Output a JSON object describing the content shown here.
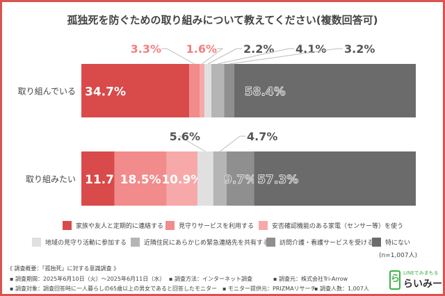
{
  "chart_data": {
    "type": "bar",
    "stacked": true,
    "orientation": "horizontal",
    "title": "孤独死を防ぐための取り組みについて教えてください(複数回答可)",
    "categories": [
      "取り組んでいる",
      "取り組みたい"
    ],
    "series": [
      {
        "name": "家族や友人と定期的に連絡する",
        "color": "#d94a4a",
        "values": [
          34.7,
          11.7
        ]
      },
      {
        "name": "見守りサービスを利用する",
        "color": "#f28b8b",
        "values": [
          3.3,
          18.5
        ]
      },
      {
        "name": "安否確認機能のある家電（センサー等）を使う",
        "color": "#f7a8a8",
        "values": [
          1.6,
          10.9
        ]
      },
      {
        "name": "地域の見守り活動に参加する",
        "color": "#e0e0e0",
        "values": [
          2.2,
          5.6
        ]
      },
      {
        "name": "近隣住民にあらかじめ緊急連絡先を共有する",
        "color": "#b5b5b5",
        "values": [
          4.1,
          4.7
        ]
      },
      {
        "name": "訪問介護・看護サービスを受ける",
        "color": "#8f8f8f",
        "values": [
          3.2,
          9.7
        ]
      },
      {
        "name": "特にない",
        "color": "#6b6b6b",
        "values": [
          58.4,
          57.3
        ]
      }
    ],
    "data_labels": [
      [
        "34.7%",
        "3.3%",
        "1.6%",
        "2.2%",
        "4.1%",
        "3.2%",
        "58.4%"
      ],
      [
        "11.7%",
        "18.5%",
        "10.9%",
        "5.6%",
        "4.7%",
        "9.7%",
        "57.3%"
      ]
    ],
    "legend_placement": "bottom"
  },
  "note": "(n=1,007人)",
  "footer": {
    "heading": "《 調査概要：「孤独死」に対する意識調査 》",
    "period": "▪ 調査期間：2025年6月10日（火）～2025年6月11日（水）",
    "method": "▪ 調査方法：インターネット調査",
    "source": "▪ 調査元：株式会社Tri-Arrow",
    "target": "▪ 調査対象：調査回答時に一人暮らしの65歳以上の男女であると回答したモニター",
    "provider": "▪ モニター提供元：PRIZMAリサーチ",
    "count": "▪ 調査人数：1,007人"
  },
  "logo": {
    "line1": "LINEでみまもる",
    "line2": "らいみー",
    "mark": "ら"
  }
}
